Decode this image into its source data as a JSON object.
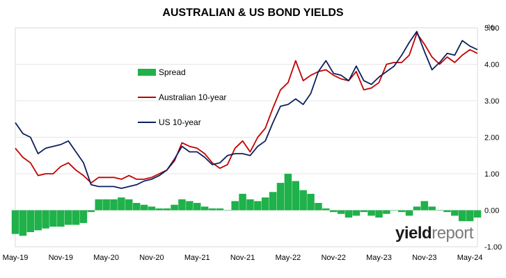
{
  "chart_data": {
    "type": "line",
    "title": "AUSTRALIAN & US BOND YIELDS",
    "ylabel": "%",
    "ylim": [
      -1.0,
      5.0
    ],
    "y_ticks": [
      "5.00",
      "4.00",
      "3.00",
      "2.00",
      "1.00",
      "0.00",
      "-1.00"
    ],
    "x_tick_labels": [
      "May-19",
      "Nov-19",
      "May-20",
      "Nov-20",
      "May-21",
      "Nov-21",
      "May-22",
      "Nov-22",
      "May-23",
      "Nov-23",
      "May-24"
    ],
    "grid": true,
    "legend_position": "upper-left inside plot",
    "colors": {
      "spread": "#1fb14a",
      "australian": "#c00000",
      "us": "#0d1f5c"
    },
    "x": [
      "2019-05",
      "2019-06",
      "2019-07",
      "2019-08",
      "2019-09",
      "2019-10",
      "2019-11",
      "2019-12",
      "2020-01",
      "2020-02",
      "2020-03",
      "2020-04",
      "2020-05",
      "2020-06",
      "2020-07",
      "2020-08",
      "2020-09",
      "2020-10",
      "2020-11",
      "2020-12",
      "2021-01",
      "2021-02",
      "2021-03",
      "2021-04",
      "2021-05",
      "2021-06",
      "2021-07",
      "2021-08",
      "2021-09",
      "2021-10",
      "2021-11",
      "2021-12",
      "2022-01",
      "2022-02",
      "2022-03",
      "2022-04",
      "2022-05",
      "2022-06",
      "2022-07",
      "2022-08",
      "2022-09",
      "2022-10",
      "2022-11",
      "2022-12",
      "2023-01",
      "2023-02",
      "2023-03",
      "2023-04",
      "2023-05",
      "2023-06",
      "2023-07",
      "2023-08",
      "2023-09",
      "2023-10",
      "2023-11",
      "2023-12",
      "2024-01",
      "2024-02",
      "2024-03",
      "2024-04",
      "2024-05",
      "2024-06"
    ],
    "series": [
      {
        "name": "Spread",
        "kind": "bar",
        "values": [
          -0.65,
          -0.7,
          -0.6,
          -0.55,
          -0.5,
          -0.45,
          -0.45,
          -0.4,
          -0.4,
          -0.35,
          -0.05,
          0.3,
          0.3,
          0.3,
          0.35,
          0.3,
          0.2,
          0.15,
          0.1,
          0.05,
          0.05,
          0.15,
          0.3,
          0.25,
          0.2,
          0.1,
          0.05,
          0.05,
          0.0,
          0.25,
          0.45,
          0.3,
          0.25,
          0.35,
          0.5,
          0.75,
          1.0,
          0.8,
          0.55,
          0.45,
          0.2,
          0.05,
          -0.05,
          -0.1,
          -0.2,
          -0.15,
          -0.05,
          -0.15,
          -0.2,
          -0.1,
          0.0,
          -0.05,
          -0.15,
          0.1,
          0.25,
          0.1,
          0.0,
          -0.05,
          -0.15,
          -0.3,
          -0.3,
          -0.2
        ]
      },
      {
        "name": "Australian 10-year",
        "kind": "line",
        "values": [
          1.7,
          1.45,
          1.3,
          0.95,
          1.0,
          1.0,
          1.2,
          1.3,
          1.1,
          0.95,
          0.75,
          0.9,
          0.9,
          0.9,
          0.85,
          0.95,
          0.85,
          0.85,
          0.9,
          1.0,
          1.1,
          1.35,
          1.85,
          1.75,
          1.7,
          1.55,
          1.3,
          1.15,
          1.25,
          1.7,
          1.9,
          1.6,
          2.0,
          2.25,
          2.8,
          3.3,
          3.5,
          4.1,
          3.55,
          3.7,
          3.8,
          3.85,
          3.7,
          3.6,
          3.55,
          3.8,
          3.3,
          3.35,
          3.5,
          4.0,
          4.05,
          4.05,
          4.25,
          4.85,
          4.55,
          4.2,
          4.0,
          4.2,
          4.05,
          4.25,
          4.4,
          4.3
        ]
      },
      {
        "name": "US 10-year",
        "kind": "line",
        "values": [
          2.4,
          2.1,
          2.0,
          1.55,
          1.7,
          1.75,
          1.8,
          1.9,
          1.6,
          1.3,
          0.7,
          0.65,
          0.65,
          0.65,
          0.6,
          0.65,
          0.7,
          0.8,
          0.85,
          0.95,
          1.1,
          1.4,
          1.75,
          1.6,
          1.6,
          1.45,
          1.25,
          1.3,
          1.5,
          1.55,
          1.55,
          1.5,
          1.75,
          1.9,
          2.4,
          2.85,
          2.9,
          3.05,
          2.9,
          3.2,
          3.8,
          4.1,
          3.75,
          3.7,
          3.55,
          3.95,
          3.55,
          3.45,
          3.65,
          3.8,
          3.95,
          4.25,
          4.6,
          4.9,
          4.35,
          3.85,
          4.05,
          4.3,
          4.25,
          4.65,
          4.5,
          4.4
        ]
      }
    ]
  },
  "brand": {
    "part1": "yield",
    "part2": "report"
  }
}
